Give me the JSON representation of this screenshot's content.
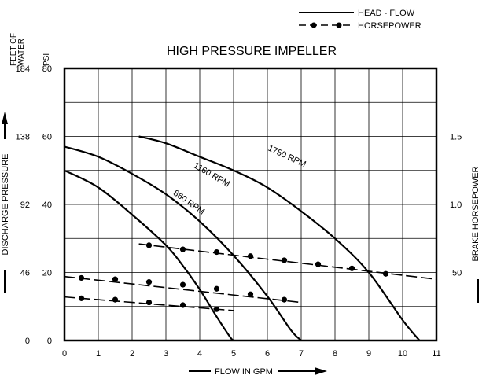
{
  "chart_data": {
    "type": "line",
    "title": "HIGH PRESSURE IMPELLER",
    "xlabel": "FLOW IN GPM",
    "ylabel_left": "DISCHARGE PRESSURE",
    "ylabel_left_unit_feet": "FEET OF WATER",
    "ylabel_left_unit_feet_lines": [
      "FEET OF",
      "WATER"
    ],
    "ylabel_left_unit_psi": "PSI",
    "ylabel_right": "BRAKE HORSEPOWER",
    "xlim": [
      0,
      11
    ],
    "ylim_psi": [
      0,
      80
    ],
    "ylim_hp": [
      0,
      2.0
    ],
    "x_ticks": [
      "0",
      "1",
      "2",
      "3",
      "4",
      "5",
      "6",
      "7",
      "8",
      "9",
      "10",
      "11"
    ],
    "y_ticks_psi": [
      {
        "value": 0,
        "label": "0"
      },
      {
        "value": 20,
        "label": "20"
      },
      {
        "value": 40,
        "label": "40"
      },
      {
        "value": 60,
        "label": "60"
      },
      {
        "value": 80,
        "label": "80"
      }
    ],
    "y_ticks_feet": [
      {
        "value": 0,
        "label": "0"
      },
      {
        "value": 20,
        "label": "46"
      },
      {
        "value": 40,
        "label": "92"
      },
      {
        "value": 60,
        "label": "138"
      },
      {
        "value": 80,
        "label": "184"
      }
    ],
    "y_ticks_hp": [
      {
        "value": 0.5,
        "label": ".50"
      },
      {
        "value": 1.0,
        "label": "1.0"
      },
      {
        "value": 1.5,
        "label": "1.5"
      }
    ],
    "grid": true,
    "legend": {
      "placement": "top-right",
      "entries": [
        {
          "label": "HEAD - FLOW",
          "style": "solid"
        },
        {
          "label": "HORSEPOWER",
          "style": "dash-dot"
        }
      ]
    },
    "head_flow_series": [
      {
        "name": "860 RPM",
        "x": [
          0,
          1,
          2,
          3,
          3.5,
          4,
          4.5,
          4.9,
          5.0
        ],
        "y": [
          50,
          45,
          37,
          28,
          22,
          15,
          7,
          1,
          0
        ]
      },
      {
        "name": "1160 RPM",
        "x": [
          0,
          1,
          2,
          3,
          4,
          5,
          6,
          6.7,
          7.0
        ],
        "y": [
          57,
          54,
          49,
          43,
          35,
          25,
          13,
          3,
          0
        ]
      },
      {
        "name": "1750 RPM",
        "x": [
          2.2,
          3,
          4,
          5,
          6,
          7,
          8,
          9,
          10,
          10.5
        ],
        "y": [
          60,
          58,
          54,
          50,
          45,
          38,
          30,
          20,
          6,
          0
        ]
      }
    ],
    "horsepower_series": [
      {
        "name": "860 RPM",
        "x": [
          0.5,
          1.5,
          2.5,
          3.5,
          4.5
        ],
        "y": [
          0.31,
          0.3,
          0.28,
          0.26,
          0.23
        ],
        "line_x": [
          0,
          5.0
        ],
        "line_y": [
          0.32,
          0.22
        ]
      },
      {
        "name": "1160 RPM",
        "x": [
          0.5,
          1.5,
          2.5,
          3.5,
          4.5,
          5.5,
          6.5
        ],
        "y": [
          0.46,
          0.45,
          0.43,
          0.41,
          0.38,
          0.34,
          0.3
        ],
        "line_x": [
          0,
          7.0
        ],
        "line_y": [
          0.47,
          0.28
        ]
      },
      {
        "name": "1750 RPM",
        "x": [
          2.5,
          3.5,
          4.5,
          5.5,
          6.5,
          7.5,
          8.5,
          9.5
        ],
        "y": [
          0.7,
          0.67,
          0.65,
          0.62,
          0.59,
          0.56,
          0.53,
          0.49
        ],
        "line_x": [
          2.2,
          11.0
        ],
        "line_y": [
          0.71,
          0.45
        ]
      }
    ],
    "curve_labels": [
      {
        "text": "860 RPM",
        "x": 3.2,
        "y": 43,
        "angle": 35
      },
      {
        "text": "1160 RPM",
        "x": 3.8,
        "y": 51,
        "angle": 30
      },
      {
        "text": "1750 RPM",
        "x": 6.0,
        "y": 56,
        "angle": 25
      }
    ]
  }
}
